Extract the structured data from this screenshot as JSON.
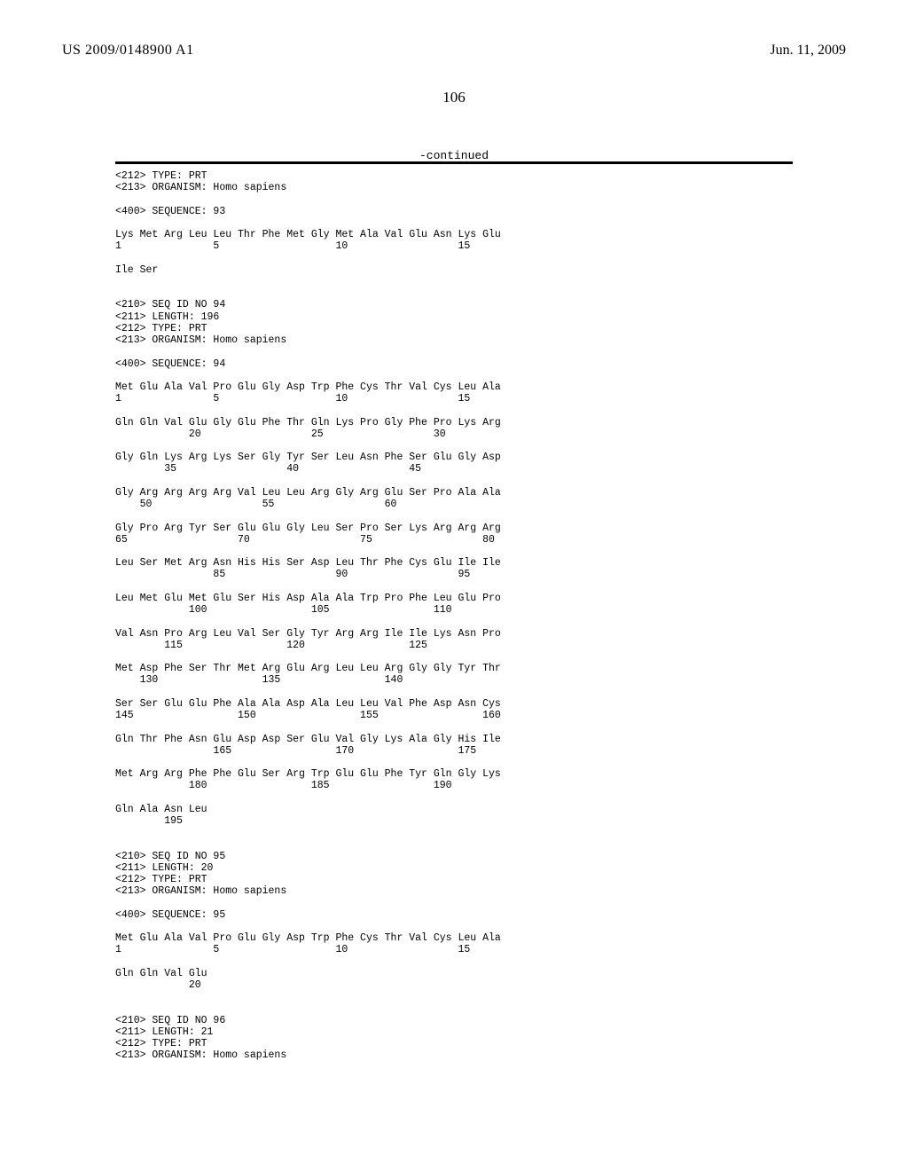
{
  "header": {
    "publication_number": "US 2009/0148900 A1",
    "publication_date": "Jun. 11, 2009",
    "page_number": "106",
    "continued_label": "-continued"
  },
  "listing_text": "<212> TYPE: PRT\n<213> ORGANISM: Homo sapiens\n\n<400> SEQUENCE: 93\n\nLys Met Arg Leu Leu Thr Phe Met Gly Met Ala Val Glu Asn Lys Glu\n1               5                   10                  15\n\nIle Ser\n\n\n<210> SEQ ID NO 94\n<211> LENGTH: 196\n<212> TYPE: PRT\n<213> ORGANISM: Homo sapiens\n\n<400> SEQUENCE: 94\n\nMet Glu Ala Val Pro Glu Gly Asp Trp Phe Cys Thr Val Cys Leu Ala\n1               5                   10                  15\n\nGln Gln Val Glu Gly Glu Phe Thr Gln Lys Pro Gly Phe Pro Lys Arg\n            20                  25                  30\n\nGly Gln Lys Arg Lys Ser Gly Tyr Ser Leu Asn Phe Ser Glu Gly Asp\n        35                  40                  45\n\nGly Arg Arg Arg Arg Val Leu Leu Arg Gly Arg Glu Ser Pro Ala Ala\n    50                  55                  60\n\nGly Pro Arg Tyr Ser Glu Glu Gly Leu Ser Pro Ser Lys Arg Arg Arg\n65                  70                  75                  80\n\nLeu Ser Met Arg Asn His His Ser Asp Leu Thr Phe Cys Glu Ile Ile\n                85                  90                  95\n\nLeu Met Glu Met Glu Ser His Asp Ala Ala Trp Pro Phe Leu Glu Pro\n            100                 105                 110\n\nVal Asn Pro Arg Leu Val Ser Gly Tyr Arg Arg Ile Ile Lys Asn Pro\n        115                 120                 125\n\nMet Asp Phe Ser Thr Met Arg Glu Arg Leu Leu Arg Gly Gly Tyr Thr\n    130                 135                 140\n\nSer Ser Glu Glu Phe Ala Ala Asp Ala Leu Leu Val Phe Asp Asn Cys\n145                 150                 155                 160\n\nGln Thr Phe Asn Glu Asp Asp Ser Glu Val Gly Lys Ala Gly His Ile\n                165                 170                 175\n\nMet Arg Arg Phe Phe Glu Ser Arg Trp Glu Glu Phe Tyr Gln Gly Lys\n            180                 185                 190\n\nGln Ala Asn Leu\n        195\n\n\n<210> SEQ ID NO 95\n<211> LENGTH: 20\n<212> TYPE: PRT\n<213> ORGANISM: Homo sapiens\n\n<400> SEQUENCE: 95\n\nMet Glu Ala Val Pro Glu Gly Asp Trp Phe Cys Thr Val Cys Leu Ala\n1               5                   10                  15\n\nGln Gln Val Glu\n            20\n\n\n<210> SEQ ID NO 96\n<211> LENGTH: 21\n<212> TYPE: PRT\n<213> ORGANISM: Homo sapiens"
}
